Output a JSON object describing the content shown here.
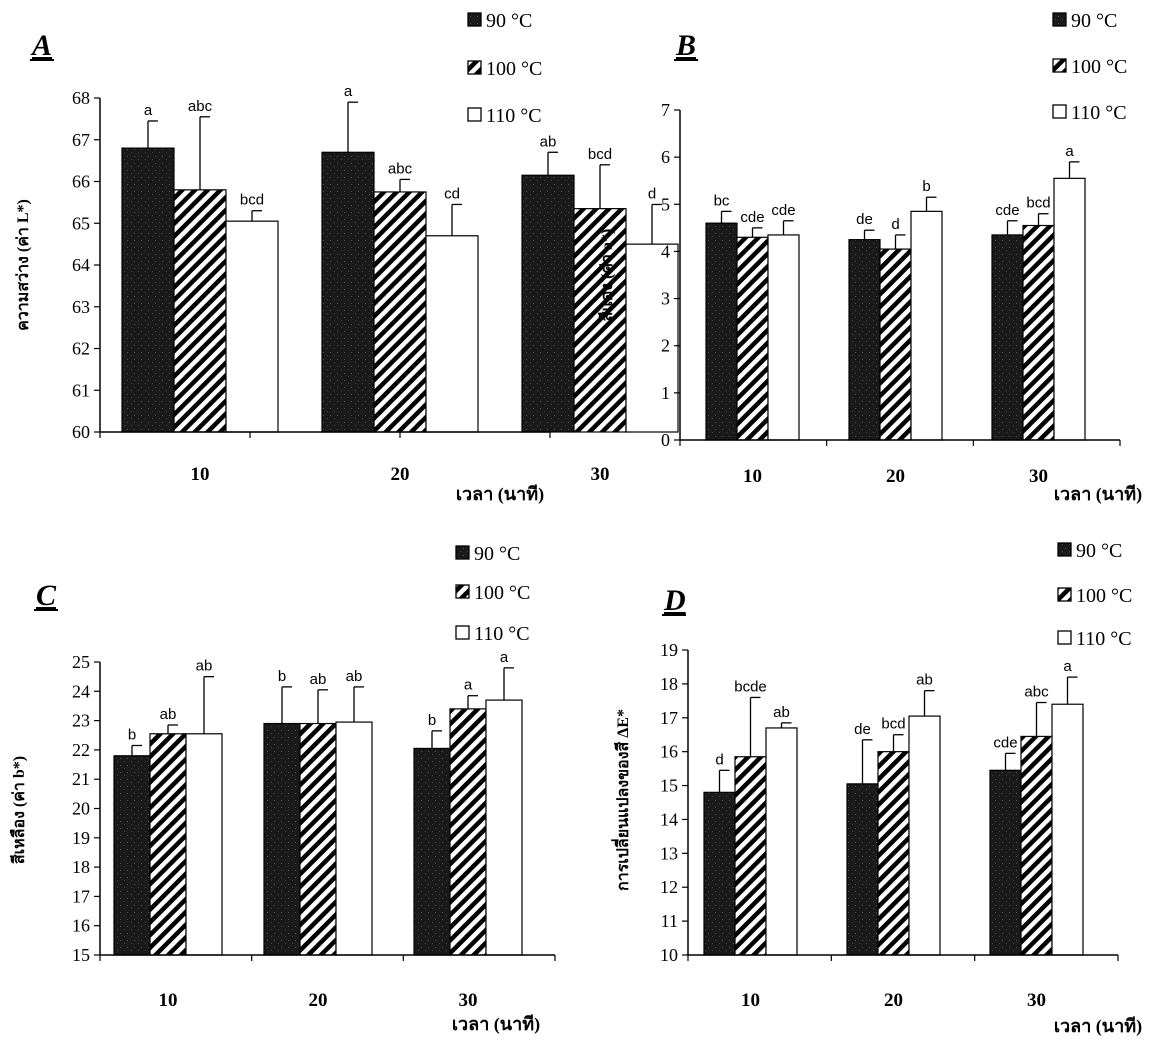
{
  "chart_data": [
    {
      "type": "bar",
      "panel_label": "A",
      "categories": [
        "10",
        "20",
        "30"
      ],
      "xlabel": "เวลา (นาที)",
      "ylabel": "ความสว่าง (ค่า L*)",
      "ylim": [
        60,
        68
      ],
      "yticks": [
        60,
        61,
        62,
        63,
        64,
        65,
        66,
        67,
        68
      ],
      "legend": [
        "90 °C",
        "100 °C",
        "110 °C"
      ],
      "series": [
        {
          "name": "90 °C",
          "values": [
            66.8,
            66.7,
            66.15
          ],
          "errors": [
            0.65,
            1.2,
            0.55
          ],
          "letters": [
            "a",
            "a",
            "ab"
          ]
        },
        {
          "name": "100 °C",
          "values": [
            65.8,
            65.75,
            65.35
          ],
          "errors": [
            1.75,
            0.3,
            1.05
          ],
          "letters": [
            "abc",
            "abc",
            "bcd"
          ]
        },
        {
          "name": "110 °C",
          "values": [
            65.05,
            64.7,
            64.5
          ],
          "errors": [
            0.25,
            0.75,
            0.95
          ],
          "letters": [
            "bcd",
            "cd",
            "d"
          ]
        }
      ]
    },
    {
      "type": "bar",
      "panel_label": "B",
      "categories": [
        "10",
        "20",
        "30"
      ],
      "xlabel": "เวลา (นาที)",
      "ylabel": "สีแดง (ค่า a*)",
      "ylim": [
        0,
        7
      ],
      "yticks": [
        0,
        1,
        2,
        3,
        4,
        5,
        6,
        7
      ],
      "legend": [
        "90 °C",
        "100 °C",
        "110 °C"
      ],
      "series": [
        {
          "name": "90 °C",
          "values": [
            4.6,
            4.25,
            4.35
          ],
          "errors": [
            0.25,
            0.2,
            0.3
          ],
          "letters": [
            "bc",
            "de",
            "cde"
          ]
        },
        {
          "name": "100 °C",
          "values": [
            4.3,
            4.05,
            4.55
          ],
          "errors": [
            0.2,
            0.3,
            0.25
          ],
          "letters": [
            "cde",
            "d",
            "bcd"
          ]
        },
        {
          "name": "110 °C",
          "values": [
            4.35,
            4.85,
            5.55
          ],
          "errors": [
            0.3,
            0.3,
            0.35
          ],
          "letters": [
            "cde",
            "b",
            "a"
          ]
        }
      ]
    },
    {
      "type": "bar",
      "panel_label": "C",
      "categories": [
        "10",
        "20",
        "30"
      ],
      "xlabel": "เวลา (นาที)",
      "ylabel": "สีเหลือง (ค่า b*)",
      "ylim": [
        15,
        25
      ],
      "yticks": [
        15,
        16,
        17,
        18,
        19,
        20,
        21,
        22,
        23,
        24,
        25
      ],
      "legend": [
        "90 °C",
        "100 °C",
        "110 °C"
      ],
      "series": [
        {
          "name": "90 °C",
          "values": [
            21.8,
            22.9,
            22.05
          ],
          "errors": [
            0.35,
            1.25,
            0.6
          ],
          "letters": [
            "b",
            "b",
            "b"
          ]
        },
        {
          "name": "100 °C",
          "values": [
            22.55,
            22.9,
            23.4
          ],
          "errors": [
            0.3,
            1.15,
            0.45
          ],
          "letters": [
            "ab",
            "ab",
            "a"
          ]
        },
        {
          "name": "110 °C",
          "values": [
            22.55,
            22.95,
            23.7
          ],
          "errors": [
            1.95,
            1.2,
            1.1
          ],
          "letters": [
            "ab",
            "ab",
            "a"
          ]
        }
      ]
    },
    {
      "type": "bar",
      "panel_label": "D",
      "categories": [
        "10",
        "20",
        "30"
      ],
      "xlabel": "เวลา (นาที)",
      "ylabel": "การเปลี่ยนแปลงของสี ΔE*",
      "ylim": [
        10,
        19
      ],
      "yticks": [
        10,
        11,
        12,
        13,
        14,
        15,
        16,
        17,
        18,
        19
      ],
      "legend": [
        "90 °C",
        "100 °C",
        "110 °C"
      ],
      "series": [
        {
          "name": "90 °C",
          "values": [
            14.8,
            15.05,
            15.45
          ],
          "errors": [
            0.65,
            1.3,
            0.5
          ],
          "letters": [
            "d",
            "de",
            "cde"
          ]
        },
        {
          "name": "100 °C",
          "values": [
            15.85,
            16.0,
            16.45
          ],
          "errors": [
            1.75,
            0.5,
            1.0
          ],
          "letters": [
            "bcde",
            "bcd",
            "abc"
          ]
        },
        {
          "name": "110 °C",
          "values": [
            16.7,
            17.05,
            17.4
          ],
          "errors": [
            0.15,
            0.75,
            0.8
          ],
          "letters": [
            "ab",
            "ab",
            "a"
          ]
        }
      ]
    }
  ],
  "colors": {
    "series_90": "#1a1a1a",
    "series_100_stripe": "#000000",
    "series_110": "#ffffff",
    "axis": "#000000"
  }
}
